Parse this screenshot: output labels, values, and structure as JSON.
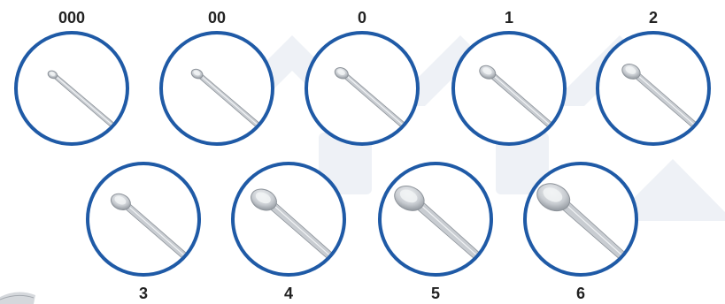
{
  "colors": {
    "ring": "#1f5aa6",
    "label": "#222222",
    "watermark": "#eef1f6",
    "steel_light": "#f1f3f5",
    "steel_mid": "#c8ccd1",
    "steel_dark": "#8d939a"
  },
  "curettes": [
    {
      "size": "000",
      "icon": "ear-curette-size-000-icon",
      "cup": 0.45
    },
    {
      "size": "00",
      "icon": "ear-curette-size-00-icon",
      "cup": 0.55
    },
    {
      "size": "0",
      "icon": "ear-curette-size-0-icon",
      "cup": 0.65
    },
    {
      "size": "1",
      "icon": "ear-curette-size-1-icon",
      "cup": 0.78
    },
    {
      "size": "2",
      "icon": "ear-curette-size-2-icon",
      "cup": 0.88
    },
    {
      "size": "3",
      "icon": "ear-curette-size-3-icon",
      "cup": 0.95
    },
    {
      "size": "4",
      "icon": "ear-curette-size-4-icon",
      "cup": 1.25
    },
    {
      "size": "5",
      "icon": "ear-curette-size-5-icon",
      "cup": 1.45
    },
    {
      "size": "6",
      "icon": "ear-curette-size-6-icon",
      "cup": 1.6
    }
  ]
}
